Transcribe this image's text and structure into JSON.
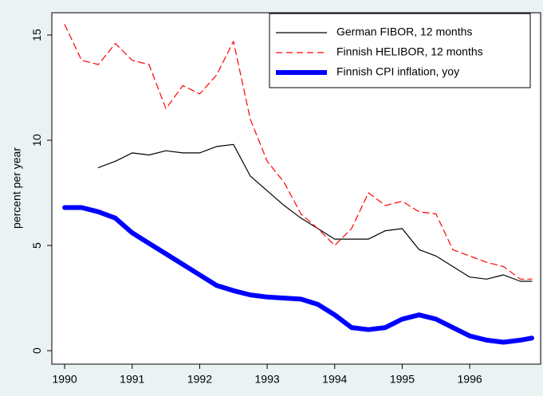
{
  "chart_data": {
    "type": "line",
    "y_label": "percent per year",
    "x": [
      1990,
      1990.25,
      1990.5,
      1990.75,
      1991,
      1991.25,
      1991.5,
      1991.75,
      1992,
      1992.25,
      1992.5,
      1992.75,
      1993,
      1993.25,
      1993.5,
      1993.75,
      1994,
      1994.25,
      1994.5,
      1994.75,
      1995,
      1995.25,
      1995.5,
      1995.75,
      1996,
      1996.25,
      1996.5,
      1996.75,
      1996.92
    ],
    "series": [
      {
        "name": "German FIBOR, 12 months",
        "color": "#000000",
        "dash": "solid",
        "width": 1.2,
        "values": [
          null,
          null,
          8.7,
          9.0,
          9.4,
          9.3,
          9.5,
          9.4,
          9.4,
          9.7,
          9.8,
          8.3,
          7.6,
          6.9,
          6.3,
          5.8,
          5.3,
          5.3,
          5.3,
          5.7,
          5.8,
          4.8,
          4.5,
          4.0,
          3.5,
          3.4,
          3.6,
          3.3,
          3.3
        ]
      },
      {
        "name": "Finnish HELIBOR, 12 months",
        "color": "#ff0000",
        "dash": "dashed",
        "width": 1.2,
        "values": [
          15.5,
          13.8,
          13.6,
          14.6,
          13.8,
          13.6,
          11.5,
          12.6,
          12.2,
          13.1,
          14.7,
          11.0,
          9.0,
          8.0,
          6.5,
          5.8,
          5.0,
          5.8,
          7.5,
          6.9,
          7.1,
          6.6,
          6.5,
          4.8,
          4.5,
          4.2,
          4.0,
          3.4,
          3.4
        ]
      },
      {
        "name": "Finnish CPI inflation, yoy",
        "color": "#0000ff",
        "dash": "solid",
        "width": 6,
        "values": [
          6.8,
          6.8,
          6.6,
          6.3,
          5.6,
          5.1,
          4.6,
          4.1,
          3.6,
          3.1,
          2.85,
          2.65,
          2.55,
          2.5,
          2.45,
          2.2,
          1.7,
          1.1,
          1.0,
          1.1,
          1.5,
          1.7,
          1.5,
          1.1,
          0.7,
          0.5,
          0.4,
          0.5,
          0.6
        ]
      }
    ],
    "xlim": [
      1989.81,
      1997.05
    ],
    "xticks": [
      1990,
      1991,
      1992,
      1993,
      1994,
      1995,
      1996
    ],
    "ylim": [
      -0.64,
      16.06
    ],
    "yticks": [
      0,
      5,
      10,
      15
    ],
    "grid": false,
    "legend": "top-right"
  }
}
